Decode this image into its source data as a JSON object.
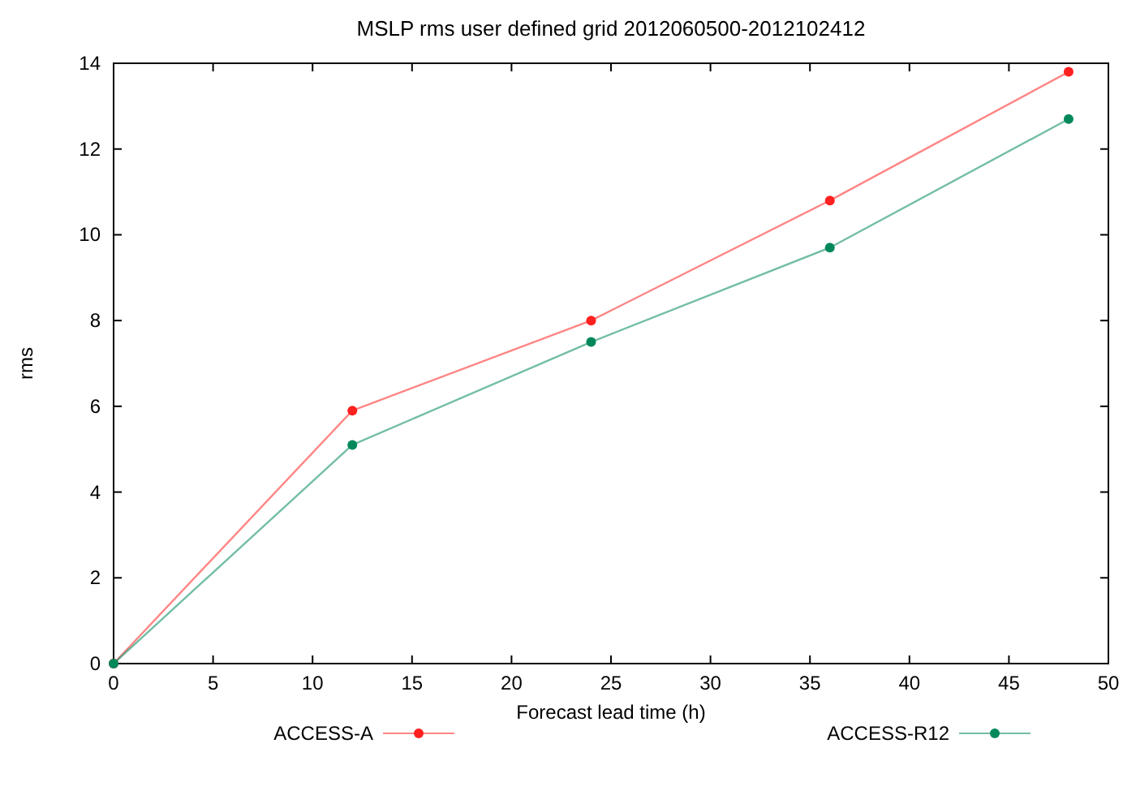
{
  "chart_data": {
    "type": "line",
    "title": "MSLP rms user defined grid 2012060500-2012102412",
    "xlabel": "Forecast lead time (h)",
    "ylabel": "rms",
    "x": [
      0,
      12,
      24,
      36,
      48
    ],
    "series": [
      {
        "name": "ACCESS-A",
        "color": "#ff2020",
        "values": [
          0,
          5.9,
          8.0,
          10.8,
          13.8
        ]
      },
      {
        "name": "ACCESS-R12",
        "color": "#00885a",
        "values": [
          0,
          5.1,
          7.5,
          9.7,
          12.7
        ]
      }
    ],
    "xlim": [
      0,
      50
    ],
    "xticks": [
      0,
      5,
      10,
      15,
      20,
      25,
      30,
      35,
      40,
      45,
      50
    ],
    "ylim": [
      0,
      14
    ],
    "yticks": [
      0,
      2,
      4,
      6,
      8,
      10,
      12,
      14
    ],
    "grid": false,
    "legend": "bottom",
    "marker": "circle",
    "line_style": "solid"
  }
}
